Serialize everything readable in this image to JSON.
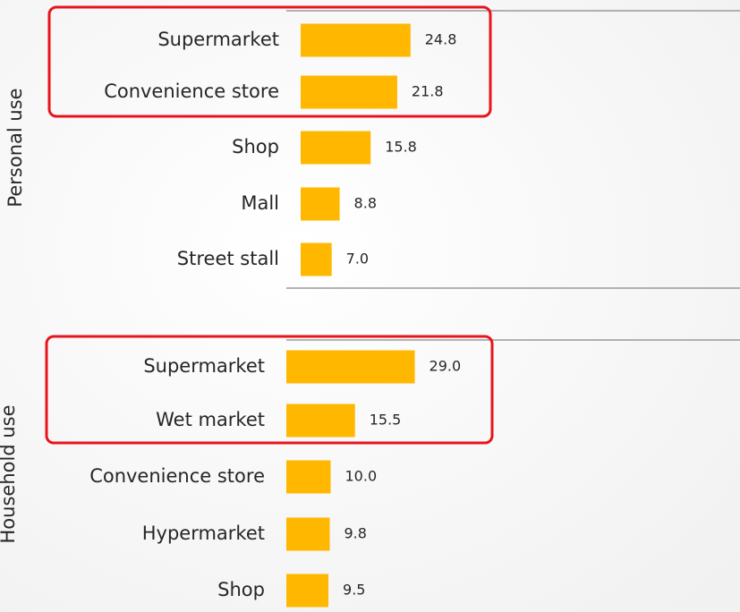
{
  "chart_data": [
    {
      "type": "bar",
      "orientation": "horizontal",
      "y_label": "Personal use",
      "categories": [
        "Supermarket",
        "Convenience store",
        "Shop",
        "Mall",
        "Street stall"
      ],
      "values": [
        24.8,
        21.8,
        15.8,
        8.8,
        7.0
      ],
      "value_labels": [
        "24.8",
        "21.8",
        "15.8",
        "8.8",
        "7.0"
      ],
      "color": "#ffb700",
      "highlight": [
        0,
        1
      ]
    },
    {
      "type": "bar",
      "orientation": "horizontal",
      "y_label": "Household use",
      "categories": [
        "Supermarket",
        "Wet market",
        "Convenience store",
        "Hypermarket",
        "Shop"
      ],
      "values": [
        29.0,
        15.5,
        10.0,
        9.8,
        9.5
      ],
      "value_labels": [
        "29.0",
        "15.5",
        "10.0",
        "9.8",
        "9.5"
      ],
      "color": "#ffb700",
      "highlight": [
        0,
        1
      ]
    }
  ]
}
